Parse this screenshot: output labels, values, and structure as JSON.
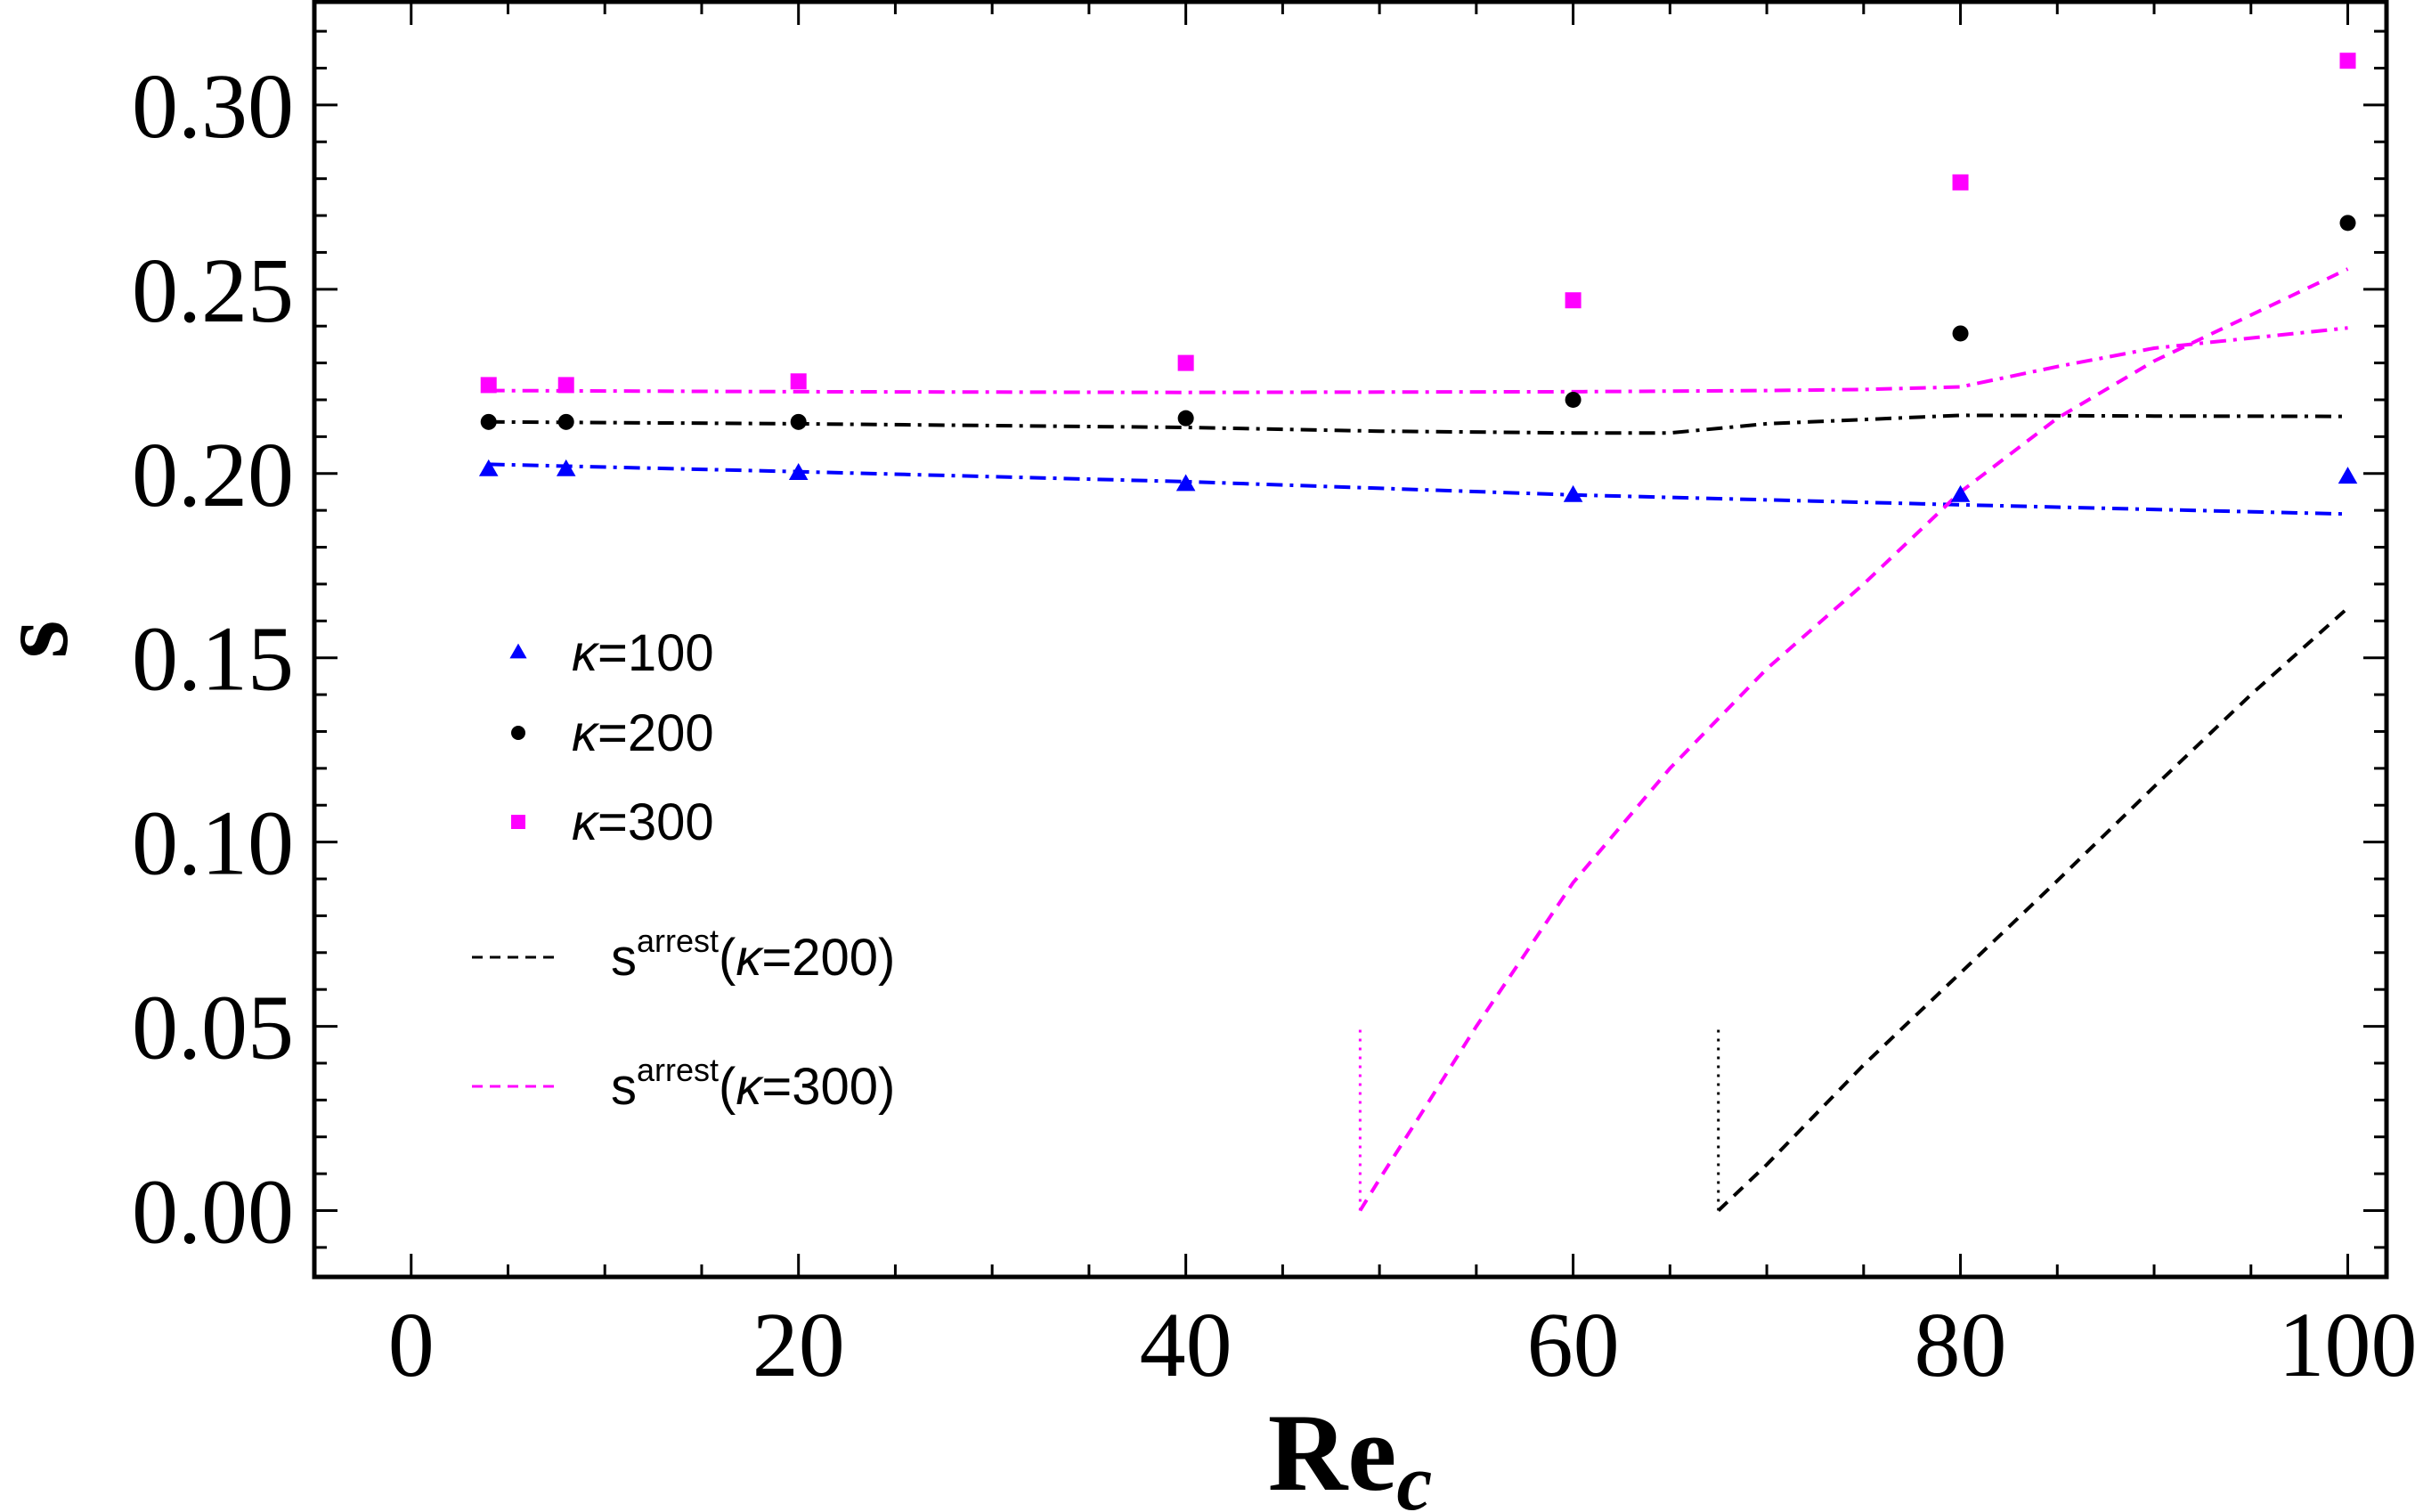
{
  "chart_data": {
    "type": "scatter",
    "title": "",
    "xlabel": {
      "main": "Re",
      "sub": "c"
    },
    "ylabel": "s",
    "xlim": [
      -5,
      102
    ],
    "ylim": [
      -0.018,
      0.328
    ],
    "xticks": [
      0,
      20,
      40,
      60,
      80,
      100
    ],
    "xtick_labels": [
      "0",
      "20",
      "40",
      "60",
      "80",
      "100"
    ],
    "yticks": [
      0.0,
      0.05,
      0.1,
      0.15,
      0.2,
      0.25,
      0.3
    ],
    "ytick_labels": [
      "0.00",
      "0.05",
      "0.10",
      "0.15",
      "0.20",
      "0.25",
      "0.30"
    ],
    "grid": false,
    "legend_position": "left-center",
    "colors": {
      "blue": "#0000ff",
      "black": "#000000",
      "magenta": "#ff00ff"
    },
    "scatter_series": [
      {
        "name": "kappa-100",
        "label_prefix": "κ",
        "label_suffix": "=100",
        "marker": "triangle",
        "color": "#0000ff",
        "x": [
          4,
          8,
          20,
          40,
          60,
          80,
          100
        ],
        "y": [
          0.201,
          0.201,
          0.2,
          0.197,
          0.194,
          0.194,
          0.199
        ]
      },
      {
        "name": "kappa-200",
        "label_prefix": "κ",
        "label_suffix": "=200",
        "marker": "circle",
        "color": "#000000",
        "x": [
          4,
          8,
          20,
          40,
          60,
          80,
          100
        ],
        "y": [
          0.214,
          0.214,
          0.214,
          0.215,
          0.22,
          0.238,
          0.268
        ]
      },
      {
        "name": "kappa-300",
        "label_prefix": "κ",
        "label_suffix": "=300",
        "marker": "square",
        "color": "#ff00ff",
        "x": [
          4,
          8,
          20,
          40,
          60,
          80,
          100
        ],
        "y": [
          0.224,
          0.224,
          0.225,
          0.23,
          0.247,
          0.279,
          0.312
        ]
      }
    ],
    "fit_series": [
      {
        "name": "fit-kappa-100",
        "style": "dashdot",
        "color": "#0000ff",
        "x": [
          4,
          20,
          40,
          60,
          80,
          100
        ],
        "y": [
          0.2025,
          0.2005,
          0.1978,
          0.1942,
          0.1915,
          0.189
        ]
      },
      {
        "name": "fit-kappa-200",
        "style": "dashdot",
        "color": "#000000",
        "x": [
          4,
          20,
          40,
          50,
          60,
          65,
          70,
          80,
          90,
          100
        ],
        "y": [
          0.214,
          0.2135,
          0.2125,
          0.2115,
          0.211,
          0.211,
          0.2135,
          0.2158,
          0.2156,
          0.2155
        ]
      },
      {
        "name": "fit-kappa-300",
        "style": "dashdot",
        "color": "#ff00ff",
        "x": [
          4,
          20,
          40,
          60,
          70,
          75,
          80,
          85,
          90,
          100
        ],
        "y": [
          0.2225,
          0.2222,
          0.222,
          0.2222,
          0.2225,
          0.2228,
          0.2235,
          0.229,
          0.234,
          0.2395
        ]
      }
    ],
    "arrest_series": [
      {
        "name": "arrest-kappa-200",
        "label_main": "s",
        "label_sup": "arrest",
        "label_prefix": "(κ",
        "label_suffix": "=200)",
        "style": "dashed",
        "color": "#000000",
        "x": [
          67.5,
          70,
          75,
          80,
          85,
          90,
          95,
          100
        ],
        "y": [
          0.0,
          0.0125,
          0.0395,
          0.0645,
          0.0895,
          0.115,
          0.14,
          0.1635
        ]
      },
      {
        "name": "arrest-kappa-300",
        "label_main": "s",
        "label_sup": "arrest",
        "label_prefix": "(κ",
        "label_suffix": "=300)",
        "style": "dashed",
        "color": "#ff00ff",
        "x": [
          49,
          50,
          52,
          55,
          60,
          65,
          70,
          75,
          80,
          85,
          90,
          95,
          100
        ],
        "y": [
          0.0,
          0.0085,
          0.025,
          0.05,
          0.089,
          0.12,
          0.147,
          0.17,
          0.195,
          0.215,
          0.2305,
          0.243,
          0.2555
        ]
      }
    ],
    "threshold_lines": [
      {
        "name": "threshold-kappa-300",
        "color": "#ff00ff",
        "x": 49,
        "y_from": 0.0,
        "y_to": 0.05
      },
      {
        "name": "threshold-kappa-200",
        "color": "#000000",
        "x": 67.5,
        "y_from": 0.0,
        "y_to": 0.05
      }
    ]
  }
}
